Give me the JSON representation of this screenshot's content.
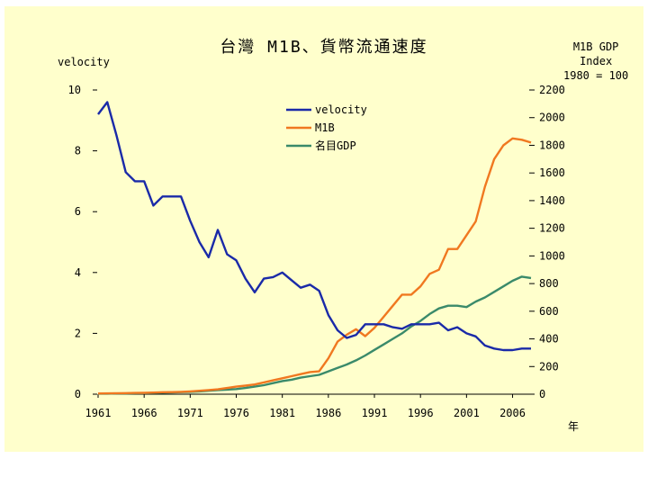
{
  "slide": {
    "title": "台灣 M1B、貨幣流通速度",
    "ylabel_left": "velocity",
    "ylabel_right_lines": [
      "M1B GDP",
      "Index",
      "1980 = 100"
    ],
    "xlabel": "年"
  },
  "chart_data": {
    "type": "line",
    "title": "台灣 M1B、貨幣流通速度",
    "xlabel": "年",
    "ylabel": "velocity",
    "ylabel_right": "M1B GDP Index 1980 = 100",
    "xlim": [
      1961,
      2008
    ],
    "ylim_left": [
      0,
      10
    ],
    "ylim_right": [
      0,
      2200
    ],
    "xticks": [
      1961,
      1966,
      1971,
      1976,
      1981,
      1986,
      1991,
      1996,
      2001,
      2006
    ],
    "yticks_left": [
      0,
      2,
      4,
      6,
      8,
      10
    ],
    "yticks_right": [
      0,
      200,
      400,
      600,
      800,
      1000,
      1200,
      1400,
      1600,
      1800,
      2000,
      2200
    ],
    "grid": false,
    "legend_position": "top-center",
    "x": [
      1961,
      1962,
      1963,
      1964,
      1965,
      1966,
      1967,
      1968,
      1969,
      1970,
      1971,
      1972,
      1973,
      1974,
      1975,
      1976,
      1977,
      1978,
      1979,
      1980,
      1981,
      1982,
      1983,
      1984,
      1985,
      1986,
      1987,
      1988,
      1989,
      1990,
      1991,
      1992,
      1993,
      1994,
      1995,
      1996,
      1997,
      1998,
      1999,
      2000,
      2001,
      2002,
      2003,
      2004,
      2005,
      2006,
      2007,
      2008
    ],
    "series": [
      {
        "name": "velocity",
        "axis": "left",
        "color": "#1a2aa8",
        "values": [
          9.2,
          9.6,
          8.5,
          7.3,
          7.0,
          7.0,
          6.2,
          6.5,
          6.5,
          6.5,
          5.7,
          5.0,
          4.5,
          5.4,
          4.6,
          4.4,
          3.8,
          3.35,
          3.8,
          3.85,
          4.0,
          3.75,
          3.5,
          3.6,
          3.4,
          2.6,
          2.1,
          1.85,
          1.95,
          2.3,
          2.3,
          2.3,
          2.2,
          2.15,
          2.3,
          2.3,
          2.3,
          2.35,
          2.1,
          2.2,
          2.0,
          1.9,
          1.6,
          1.5,
          1.45,
          1.45,
          1.5,
          1.5
        ]
      },
      {
        "name": "M1B",
        "axis": "right",
        "color": "#f07820",
        "values": [
          5,
          6,
          7,
          8,
          9,
          10,
          12,
          14,
          15,
          17,
          20,
          25,
          30,
          35,
          45,
          55,
          62,
          70,
          85,
          100,
          115,
          130,
          145,
          160,
          165,
          260,
          380,
          430,
          470,
          420,
          480,
          560,
          640,
          720,
          720,
          780,
          870,
          900,
          1050,
          1050,
          1150,
          1250,
          1500,
          1700,
          1800,
          1850,
          1840,
          1820
        ]
      },
      {
        "name": "名目GDP",
        "axis": "right",
        "color": "#3a8a6a",
        "values": [
          4,
          4,
          5,
          5,
          7,
          8,
          10,
          11,
          13,
          15,
          17,
          20,
          25,
          30,
          33,
          37,
          45,
          55,
          65,
          80,
          95,
          105,
          120,
          130,
          140,
          165,
          190,
          215,
          245,
          280,
          320,
          360,
          400,
          440,
          490,
          530,
          580,
          620,
          640,
          640,
          630,
          670,
          700,
          740,
          780,
          820,
          850,
          840
        ]
      }
    ]
  }
}
